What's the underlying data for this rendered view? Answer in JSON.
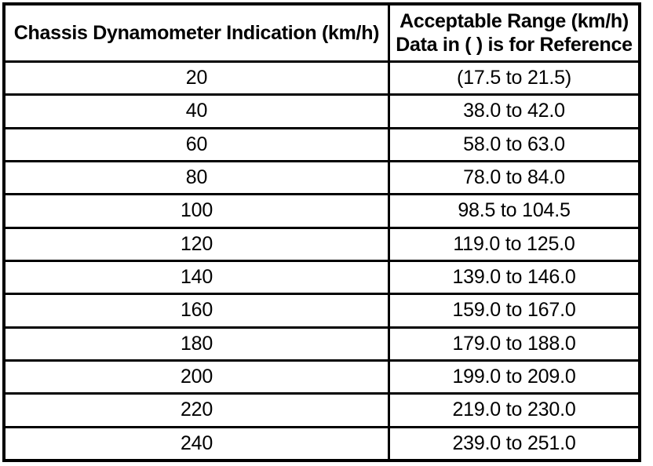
{
  "table": {
    "header": {
      "col1": "Chassis Dynamometer Indication (km/h)",
      "col2_line1": "Acceptable Range (km/h)",
      "col2_line2": "Data in ( ) is for Reference"
    },
    "rows": [
      {
        "indication": "20",
        "range": "(17.5 to 21.5)"
      },
      {
        "indication": "40",
        "range": "38.0 to 42.0"
      },
      {
        "indication": "60",
        "range": "58.0 to 63.0"
      },
      {
        "indication": "80",
        "range": "78.0 to 84.0"
      },
      {
        "indication": "100",
        "range": "98.5 to 104.5"
      },
      {
        "indication": "120",
        "range": "119.0 to 125.0"
      },
      {
        "indication": "140",
        "range": "139.0 to 146.0"
      },
      {
        "indication": "160",
        "range": "159.0 to 167.0"
      },
      {
        "indication": "180",
        "range": "179.0 to 188.0"
      },
      {
        "indication": "200",
        "range": "199.0 to 209.0"
      },
      {
        "indication": "220",
        "range": "219.0 to 230.0"
      },
      {
        "indication": "240",
        "range": "239.0 to 251.0"
      }
    ],
    "colors": {
      "border": "#000000",
      "background": "#ffffff",
      "text": "#000000"
    }
  }
}
